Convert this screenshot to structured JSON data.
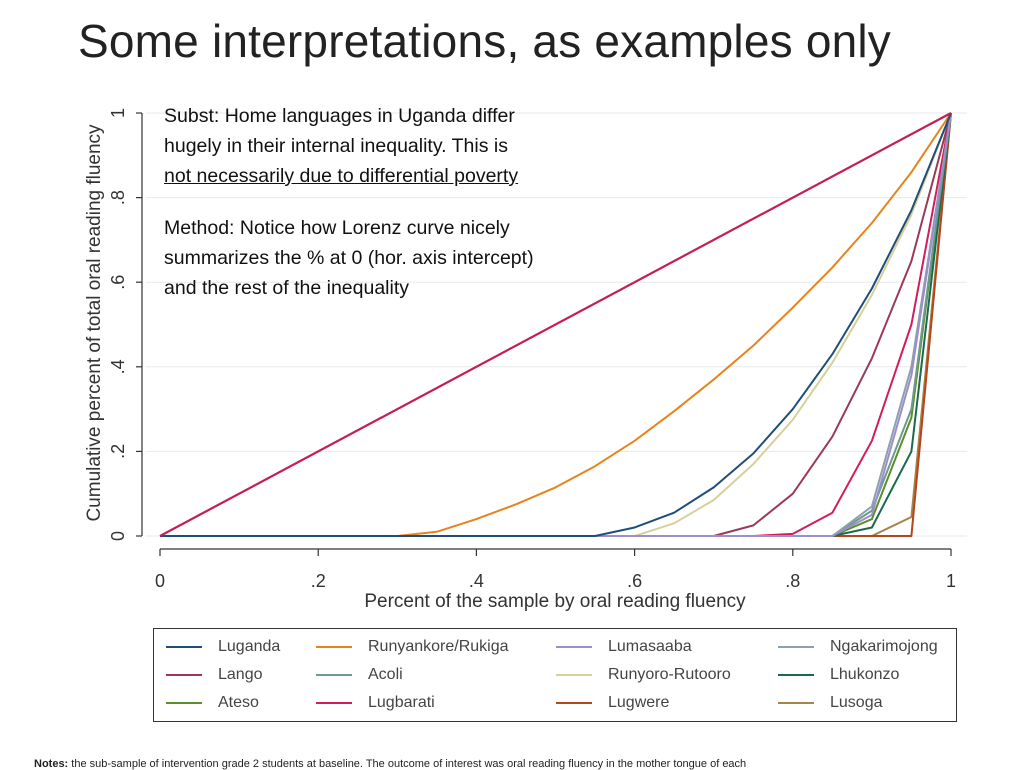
{
  "slide": {
    "title": "Some interpretations, as examples only"
  },
  "annotation": {
    "line1": "Subst: Home languages in Uganda differ",
    "line2": "hugely in their internal inequality. This is",
    "line3": "not necessarily due to differential poverty",
    "line4": "Method: Notice how Lorenz curve nicely",
    "line5": "summarizes the % at 0 (hor. axis intercept)",
    "line6": "and the rest of the inequality"
  },
  "notes": {
    "label": "Notes:",
    "text": "the sub-sample of intervention grade 2 students at baseline. The outcome of interest was oral reading fluency in the mother tongue of each"
  },
  "chart_data": {
    "type": "line",
    "xlabel": "Percent of the sample by oral reading fluency",
    "ylabel": "Cumulative percent of total oral reading fluency",
    "xlim": [
      0,
      1
    ],
    "ylim": [
      0,
      1
    ],
    "xticks": [
      0,
      0.2,
      0.4,
      0.6,
      0.8,
      1
    ],
    "xtick_labels": [
      "0",
      ".2",
      ".4",
      ".6",
      ".8",
      "1"
    ],
    "yticks": [
      0,
      0.2,
      0.4,
      0.6,
      0.8,
      1
    ],
    "ytick_labels": [
      "0",
      ".2",
      ".4",
      ".6",
      ".8",
      "1"
    ],
    "grid": "horizontal",
    "legend_position": "bottom",
    "equality_line": {
      "x": [
        0,
        1
      ],
      "y": [
        0,
        1
      ],
      "color": "#c41e55"
    },
    "series": [
      {
        "name": "Luganda",
        "color": "#1f4e79",
        "x": [
          0,
          0.55,
          0.6,
          0.65,
          0.7,
          0.75,
          0.8,
          0.85,
          0.9,
          0.95,
          1
        ],
        "y": [
          0,
          0,
          0.02,
          0.055,
          0.115,
          0.195,
          0.3,
          0.43,
          0.585,
          0.77,
          1
        ]
      },
      {
        "name": "Runyankore/Rukiga",
        "color": "#e8831c",
        "x": [
          0,
          0.3,
          0.35,
          0.4,
          0.45,
          0.5,
          0.55,
          0.6,
          0.65,
          0.7,
          0.75,
          0.8,
          0.85,
          0.9,
          0.95,
          1
        ],
        "y": [
          0,
          0,
          0.01,
          0.04,
          0.075,
          0.115,
          0.165,
          0.225,
          0.295,
          0.37,
          0.45,
          0.54,
          0.635,
          0.74,
          0.86,
          1
        ]
      },
      {
        "name": "Lumasaaba",
        "color": "#9b8fc9",
        "x": [
          0,
          0.85,
          0.9,
          0.95,
          1
        ],
        "y": [
          0,
          0,
          0.05,
          0.38,
          1
        ]
      },
      {
        "name": "Ngakarimojong",
        "color": "#8ca0ad",
        "x": [
          0,
          0.85,
          0.9,
          0.95,
          1
        ],
        "y": [
          0,
          0,
          0.07,
          0.4,
          1
        ]
      },
      {
        "name": "Lango",
        "color": "#9b3a55",
        "x": [
          0,
          0.7,
          0.75,
          0.8,
          0.85,
          0.9,
          0.95,
          1
        ],
        "y": [
          0,
          0,
          0.025,
          0.1,
          0.235,
          0.42,
          0.65,
          1
        ]
      },
      {
        "name": "Acoli",
        "color": "#6f9a8f",
        "x": [
          0,
          0.85,
          0.9,
          0.95,
          1
        ],
        "y": [
          0,
          0,
          0.06,
          0.3,
          1
        ]
      },
      {
        "name": "Runyoro-Rutooro",
        "color": "#d6d19a",
        "x": [
          0,
          0.6,
          0.65,
          0.7,
          0.75,
          0.8,
          0.85,
          0.9,
          0.95,
          1
        ],
        "y": [
          0,
          0,
          0.03,
          0.085,
          0.17,
          0.275,
          0.41,
          0.57,
          0.76,
          1
        ]
      },
      {
        "name": "Lhukonzo",
        "color": "#1a6b4a",
        "x": [
          0,
          0.85,
          0.9,
          0.95,
          1
        ],
        "y": [
          0,
          0,
          0.02,
          0.2,
          1
        ]
      },
      {
        "name": "Ateso",
        "color": "#5a8f2a",
        "x": [
          0,
          0.85,
          0.9,
          0.95,
          1
        ],
        "y": [
          0,
          0,
          0.04,
          0.28,
          1
        ]
      },
      {
        "name": "Lugbarati",
        "color": "#d41c5c",
        "x": [
          0,
          0.75,
          0.8,
          0.85,
          0.9,
          0.95,
          1
        ],
        "y": [
          0,
          0,
          0.005,
          0.055,
          0.225,
          0.5,
          1
        ]
      },
      {
        "name": "Lugwere",
        "color": "#b5451b",
        "x": [
          0,
          0.9,
          0.95,
          1
        ],
        "y": [
          0,
          0,
          0,
          1
        ]
      },
      {
        "name": "Lusoga",
        "color": "#a8834a",
        "x": [
          0,
          0.9,
          0.95,
          1
        ],
        "y": [
          0,
          0,
          0.045,
          1
        ]
      }
    ]
  }
}
